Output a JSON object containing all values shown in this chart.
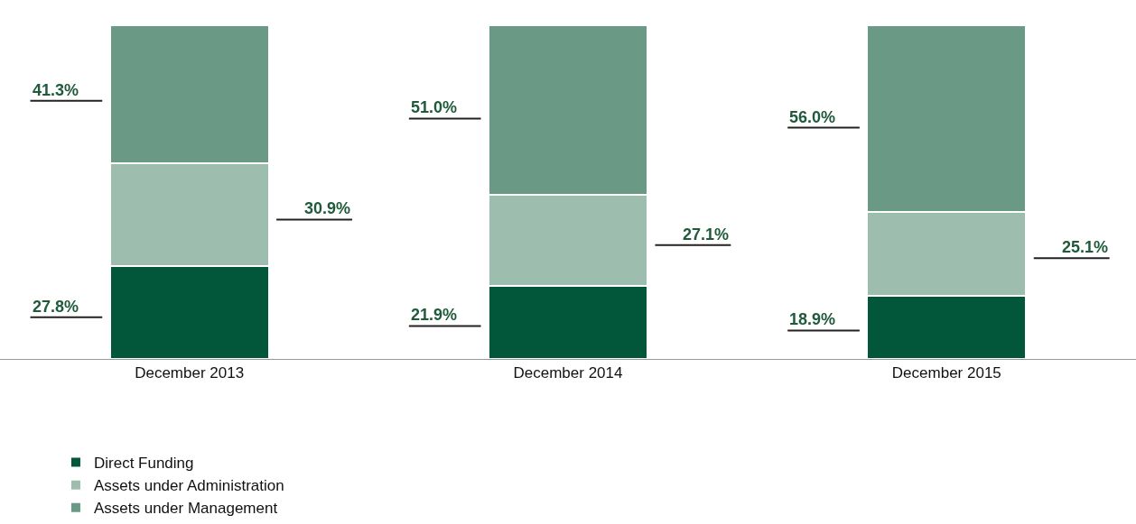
{
  "chart_data": {
    "type": "bar",
    "stacked": true,
    "categories": [
      "December 2013",
      "December 2014",
      "December 2015"
    ],
    "series": [
      {
        "name": "Direct Funding",
        "color": "#02563a",
        "values": [
          27.8,
          21.9,
          18.9
        ],
        "value_labels": [
          "27.8%",
          "21.9%",
          "18.9%"
        ]
      },
      {
        "name": "Assets under Administration",
        "color": "#9dbdaf",
        "values": [
          30.9,
          27.1,
          25.1
        ],
        "value_labels": [
          "30.9%",
          "27.1%",
          "25.1%"
        ]
      },
      {
        "name": "Assets under Management",
        "color": "#6a9a85",
        "values": [
          41.3,
          51.0,
          56.0
        ],
        "value_labels": [
          "41.3%",
          "51.0%",
          "56.0%"
        ]
      }
    ],
    "legend": "bottom",
    "grid": false,
    "tick_labels": "x"
  }
}
